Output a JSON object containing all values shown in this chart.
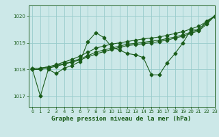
{
  "title": "Graphe pression niveau de la mer (hPa)",
  "bg_color": "#cce8e8",
  "grid_color": "#99cccc",
  "line_color": "#1a5c1a",
  "xlim": [
    -0.5,
    23
  ],
  "ylim": [
    1016.6,
    1020.4
  ],
  "yticks": [
    1017,
    1018,
    1019,
    1020
  ],
  "xticks": [
    0,
    1,
    2,
    3,
    4,
    5,
    6,
    7,
    8,
    9,
    10,
    11,
    12,
    13,
    14,
    15,
    16,
    17,
    18,
    19,
    20,
    21,
    22,
    23
  ],
  "series": [
    [
      1018.0,
      1017.0,
      1018.0,
      1017.85,
      1018.05,
      1018.15,
      1018.3,
      1019.05,
      1019.38,
      1019.2,
      1018.85,
      1018.72,
      1018.6,
      1018.55,
      1018.45,
      1017.8,
      1017.8,
      1018.25,
      1018.6,
      1019.0,
      1019.48,
      1019.48,
      1019.82,
      1020.0
    ],
    [
      1018.05,
      1018.05,
      1018.1,
      1018.18,
      1018.28,
      1018.38,
      1018.5,
      1018.65,
      1018.8,
      1018.88,
      1018.95,
      1019.0,
      1019.05,
      1019.1,
      1019.15,
      1019.18,
      1019.22,
      1019.28,
      1019.35,
      1019.42,
      1019.52,
      1019.62,
      1019.8,
      1020.0
    ],
    [
      1018.05,
      1018.05,
      1018.1,
      1018.15,
      1018.22,
      1018.3,
      1018.4,
      1018.52,
      1018.65,
      1018.73,
      1018.8,
      1018.88,
      1018.95,
      1018.98,
      1019.02,
      1019.06,
      1019.1,
      1019.16,
      1019.22,
      1019.3,
      1019.4,
      1019.5,
      1019.75,
      1020.0
    ],
    [
      1018.0,
      1018.0,
      1018.05,
      1018.12,
      1018.2,
      1018.28,
      1018.36,
      1018.47,
      1018.58,
      1018.67,
      1018.75,
      1018.83,
      1018.9,
      1018.93,
      1018.97,
      1019.0,
      1019.05,
      1019.1,
      1019.18,
      1019.25,
      1019.35,
      1019.45,
      1019.7,
      1020.0
    ]
  ],
  "marker": "D",
  "markersize": 2.5,
  "linewidth": 0.8,
  "tick_fontsize": 5.0,
  "xlabel_fontsize": 6.5
}
